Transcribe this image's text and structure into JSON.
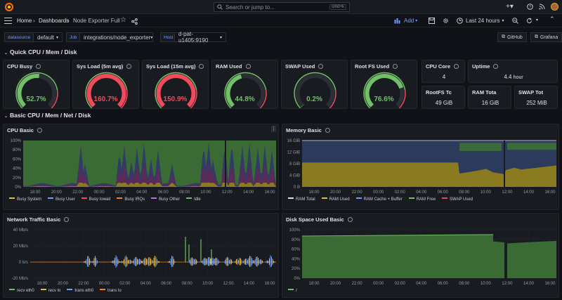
{
  "search": {
    "placeholder": "Search or jump to...",
    "shortcut": "cmd+k"
  },
  "breadcrumb": {
    "home": "Home",
    "dashboards": "Dashboards",
    "current": "Node Exporter Full"
  },
  "toolbar": {
    "add_label": "Add",
    "time_range": "Last 24 hours"
  },
  "variables": [
    {
      "label": "datasource",
      "value": "default"
    },
    {
      "label": "Job",
      "value": "integrations/node_exporter"
    },
    {
      "label": "Host",
      "value": "d-pat-u1405:9190"
    }
  ],
  "links": {
    "github": "GitHub",
    "grafana": "Grafana"
  },
  "rows": {
    "quick": "Quick CPU / Mem / Disk",
    "basic": "Basic CPU / Mem / Net / Disk"
  },
  "gauges": [
    {
      "title": "CPU Busy",
      "value": "52.7%",
      "fraction": 0.527,
      "color": "#73bf69"
    },
    {
      "title": "Sys Load (5m avg)",
      "value": "160.7%",
      "fraction": 1.0,
      "color": "#f2495c"
    },
    {
      "title": "Sys Load (15m avg)",
      "value": "150.9%",
      "fraction": 1.0,
      "color": "#f2495c"
    },
    {
      "title": "RAM Used",
      "value": "44.8%",
      "fraction": 0.448,
      "color": "#73bf69"
    },
    {
      "title": "SWAP Used",
      "value": "0.2%",
      "fraction": 0.002,
      "color": "#73bf69"
    },
    {
      "title": "Root FS Used",
      "value": "76.6%",
      "fraction": 0.766,
      "color": "#73bf69"
    }
  ],
  "stats": [
    {
      "title": "CPU Core",
      "value": "4",
      "unit": ""
    },
    {
      "title": "Uptime",
      "value": "4.4",
      "unit": "hour"
    },
    {
      "title": "RootFS Tc",
      "value": "49 GiB",
      "unit": ""
    },
    {
      "title": "RAM Tota",
      "value": "16 GiB",
      "unit": ""
    },
    {
      "title": "SWAP Tot",
      "value": "252 MiB",
      "unit": ""
    }
  ],
  "x_ticks": [
    "18:00",
    "20:00",
    "22:00",
    "00:00",
    "02:00",
    "04:00",
    "06:00",
    "08:00",
    "10:00",
    "12:00",
    "14:00",
    "16:00"
  ],
  "panels": {
    "cpu": {
      "title": "CPU Basic",
      "y_ticks": [
        "100%",
        "80%",
        "60%",
        "40%",
        "20%",
        "0%"
      ],
      "legend": [
        {
          "name": "Busy System",
          "color": "#eab839"
        },
        {
          "name": "Busy User",
          "color": "#6e9fff"
        },
        {
          "name": "Busy Iowait",
          "color": "#f2495c"
        },
        {
          "name": "Busy IRQs",
          "color": "#ff7f0e"
        },
        {
          "name": "Busy Other",
          "color": "#b877d9"
        },
        {
          "name": "Idle",
          "color": "#73bf69"
        }
      ]
    },
    "mem": {
      "title": "Memory Basic",
      "y_ticks": [
        "16 GiB",
        "12 GiB",
        "8 GiB",
        "4 GiB",
        "0 B"
      ],
      "legend": [
        {
          "name": "RAM Total",
          "color": "#e0e0e8"
        },
        {
          "name": "RAM Used",
          "color": "#eab839"
        },
        {
          "name": "RAM Cache + Buffer",
          "color": "#6e9fff"
        },
        {
          "name": "RAM Free",
          "color": "#73bf69"
        },
        {
          "name": "SWAP Used",
          "color": "#f2495c"
        }
      ]
    },
    "net": {
      "title": "Network Traffic Basic",
      "y_ticks": [
        "40 Mb/s",
        "20 Mb/s",
        "0 b/s",
        "-20 Mb/s"
      ],
      "legend": [
        {
          "name": "recv eth0",
          "color": "#73bf69"
        },
        {
          "name": "recv lo",
          "color": "#eab839"
        },
        {
          "name": "trans eth0",
          "color": "#6e9fff"
        },
        {
          "name": "trans lo",
          "color": "#ff7f0e"
        }
      ]
    },
    "disk": {
      "title": "Disk Space Used Basic",
      "y_ticks": [
        "100%",
        "80%",
        "60%",
        "40%",
        "20%",
        "0%"
      ],
      "legend": [
        {
          "name": "/",
          "color": "#73bf69"
        }
      ]
    }
  },
  "colors": {
    "bg": "#111217",
    "panel": "#181b1f",
    "green": "#73bf69",
    "red": "#f2495c",
    "yellow": "#eab839",
    "blue": "#6e9fff",
    "accent": "#6e9fff"
  }
}
